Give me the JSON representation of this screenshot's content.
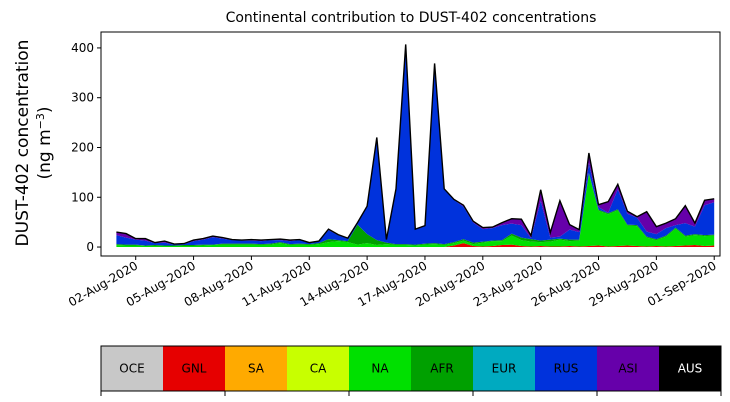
{
  "chart_data": {
    "type": "area",
    "stacked": true,
    "title": "Continental contribution to DUST-402 concentrations",
    "ylabel_line1": "DUST-402 concentration",
    "ylabel_line2_prefix": "(ng m",
    "ylabel_line2_sup": "−3",
    "ylabel_line2_suffix": ")",
    "xlabel": "",
    "ylim": [
      -18,
      432
    ],
    "yticks": [
      0,
      100,
      200,
      300,
      400
    ],
    "xlim": [
      -0.8,
      31.3
    ],
    "xticks": [
      {
        "x": 1,
        "label": "02-Aug-2020"
      },
      {
        "x": 4,
        "label": "05-Aug-2020"
      },
      {
        "x": 7,
        "label": "08-Aug-2020"
      },
      {
        "x": 10,
        "label": "11-Aug-2020"
      },
      {
        "x": 13,
        "label": "14-Aug-2020"
      },
      {
        "x": 16,
        "label": "17-Aug-2020"
      },
      {
        "x": 19,
        "label": "20-Aug-2020"
      },
      {
        "x": 22,
        "label": "23-Aug-2020"
      },
      {
        "x": 25,
        "label": "26-Aug-2020"
      },
      {
        "x": 28,
        "label": "29-Aug-2020"
      },
      {
        "x": 31,
        "label": "01-Sep-2020"
      }
    ],
    "x": [
      0,
      0.5,
      1,
      1.5,
      2,
      2.5,
      3,
      3.5,
      4,
      4.5,
      5,
      5.5,
      6,
      6.5,
      7,
      7.5,
      8,
      8.5,
      9,
      9.5,
      10,
      10.5,
      11,
      11.5,
      12,
      12.5,
      13,
      13.5,
      14,
      14.5,
      15,
      15.5,
      16,
      16.5,
      17,
      17.5,
      18,
      18.5,
      19,
      19.5,
      20,
      20.5,
      21,
      21.5,
      22,
      22.5,
      23,
      23.5,
      24,
      24.5,
      25,
      25.5,
      26,
      26.5,
      27,
      27.5,
      28,
      28.5,
      29,
      29.5,
      30,
      30.5,
      31
    ],
    "series": [
      {
        "name": "OCE",
        "color": "#c8c8c8",
        "values": [
          0,
          0,
          0,
          0,
          0,
          0,
          0,
          0,
          0,
          0,
          0,
          0,
          0,
          0,
          0,
          0,
          0,
          0,
          0,
          0,
          0,
          0,
          0,
          0,
          0,
          0,
          0,
          0,
          0,
          0,
          0,
          0,
          0,
          0,
          0,
          0,
          0,
          0,
          0,
          0,
          0,
          0,
          0,
          0,
          0,
          0,
          0,
          0,
          0,
          0,
          0,
          0,
          0,
          0,
          0,
          0,
          0,
          0,
          0,
          0,
          0,
          0,
          0
        ]
      },
      {
        "name": "GNL",
        "color": "#e60000",
        "values": [
          0,
          0,
          0,
          0,
          0,
          0,
          0,
          0,
          0,
          0,
          0,
          0,
          0,
          0,
          0,
          0,
          0,
          0,
          0,
          0,
          0,
          0,
          0,
          0,
          0,
          0,
          0,
          0,
          0,
          0,
          0,
          0,
          0,
          0,
          0,
          3,
          8,
          2,
          1,
          2,
          4,
          5,
          2,
          1,
          2,
          1,
          1,
          2,
          1,
          2,
          3,
          1,
          2,
          3,
          2,
          1,
          2,
          1,
          2,
          3,
          4,
          2,
          3
        ]
      },
      {
        "name": "SA",
        "color": "#ffaa00",
        "values": [
          0,
          0,
          0,
          0,
          0,
          0,
          0,
          0,
          0,
          0,
          0,
          0,
          0,
          0,
          0,
          0,
          0,
          0,
          0,
          0,
          0,
          0,
          0,
          0,
          0,
          0,
          0,
          0,
          0,
          0,
          0,
          0,
          0,
          0,
          0,
          0,
          0,
          0,
          0,
          0,
          0,
          0,
          0,
          0,
          0,
          0,
          0,
          0,
          0,
          0,
          0,
          0,
          0,
          0,
          0,
          0,
          0,
          0,
          0,
          0,
          0,
          0,
          0
        ]
      },
      {
        "name": "CA",
        "color": "#c8ff00",
        "values": [
          0,
          0,
          0,
          0,
          0,
          0,
          0,
          0,
          0,
          0,
          0,
          0,
          0,
          0,
          0,
          0,
          0,
          0,
          0,
          0,
          0,
          0,
          0,
          0,
          0,
          0,
          0,
          0,
          0,
          0,
          0,
          0,
          0,
          0,
          0,
          0,
          0,
          0,
          0,
          0,
          0,
          0,
          0,
          0,
          0,
          0,
          0,
          0,
          0,
          0,
          0,
          0,
          0,
          0,
          0,
          0,
          0,
          0,
          0,
          0,
          0,
          0,
          0
        ]
      },
      {
        "name": "NA",
        "color": "#00e000",
        "values": [
          4,
          3,
          3,
          2,
          2,
          2,
          2,
          2,
          2,
          3,
          4,
          5,
          5,
          5,
          5,
          4,
          5,
          8,
          4,
          5,
          4,
          6,
          10,
          12,
          10,
          5,
          8,
          4,
          6,
          4,
          4,
          3,
          5,
          6,
          4,
          5,
          5,
          4,
          8,
          10,
          8,
          18,
          12,
          10,
          8,
          10,
          14,
          10,
          12,
          145,
          70,
          65,
          72,
          40,
          40,
          18,
          12,
          20,
          35,
          18,
          20,
          20,
          20
        ]
      },
      {
        "name": "AFR",
        "color": "#00a000",
        "values": [
          2,
          2,
          2,
          1,
          2,
          1,
          1,
          2,
          2,
          2,
          1,
          2,
          2,
          2,
          2,
          2,
          2,
          2,
          2,
          2,
          2,
          2,
          6,
          2,
          2,
          40,
          18,
          10,
          3,
          2,
          2,
          2,
          2,
          2,
          2,
          2,
          3,
          3,
          2,
          1,
          2,
          4,
          5,
          5,
          3,
          4,
          2,
          3,
          2,
          2,
          2,
          2,
          2,
          2,
          2,
          2,
          2,
          2,
          2,
          2,
          2,
          2,
          2
        ]
      },
      {
        "name": "EUR",
        "color": "#00aac0",
        "values": [
          0,
          0,
          0,
          0,
          0,
          0,
          0,
          0,
          0,
          0,
          0,
          0,
          0,
          0,
          0,
          0,
          0,
          0,
          0,
          0,
          0,
          0,
          0,
          0,
          0,
          0,
          0,
          0,
          0,
          0,
          0,
          0,
          0,
          0,
          0,
          0,
          0,
          0,
          0,
          0,
          0,
          0,
          0,
          0,
          0,
          0,
          0,
          0,
          0,
          0,
          0,
          0,
          0,
          0,
          0,
          0,
          0,
          0,
          0,
          0,
          0,
          0,
          0
        ]
      },
      {
        "name": "RUS",
        "color": "#0032dc",
        "values": [
          18,
          14,
          10,
          10,
          4,
          6,
          2,
          2,
          8,
          10,
          15,
          10,
          7,
          6,
          6,
          6,
          7,
          4,
          6,
          7,
          2,
          3,
          18,
          10,
          5,
          3,
          55,
          205,
          5,
          110,
          400,
          30,
          35,
          360,
          110,
          85,
          65,
          40,
          25,
          25,
          30,
          20,
          25,
          2,
          80,
          4,
          4,
          20,
          15,
          20,
          5,
          1,
          40,
          22,
          15,
          10,
          10,
          15,
          5,
          25,
          15,
          60,
          65
        ]
      },
      {
        "name": "ASI",
        "color": "#6600aa",
        "values": [
          6,
          8,
          2,
          4,
          1,
          3,
          1,
          1,
          2,
          2,
          2,
          2,
          1,
          1,
          2,
          2,
          1,
          2,
          2,
          1,
          1,
          1,
          2,
          1,
          1,
          1,
          1,
          1,
          1,
          1,
          1,
          1,
          1,
          1,
          1,
          1,
          3,
          3,
          3,
          2,
          5,
          10,
          12,
          5,
          22,
          10,
          72,
          10,
          5,
          20,
          5,
          22,
          10,
          5,
          2,
          40,
          15,
          10,
          13,
          35,
          7,
          10,
          7
        ]
      },
      {
        "name": "AUS",
        "color": "#000000",
        "values": [
          0,
          0,
          0,
          0,
          0,
          0,
          0,
          0,
          0,
          0,
          0,
          0,
          0,
          0,
          0,
          0,
          0,
          0,
          0,
          0,
          0,
          0,
          0,
          0,
          0,
          0,
          0,
          0,
          0,
          0,
          0,
          0,
          0,
          0,
          0,
          0,
          0,
          0,
          0,
          0,
          0,
          0,
          0,
          0,
          0,
          0,
          0,
          0,
          0,
          0,
          0,
          0,
          0,
          0,
          0,
          0,
          0,
          0,
          0,
          0,
          0,
          0,
          0
        ]
      }
    ],
    "legend": {
      "placement": "bottom",
      "entries": [
        {
          "label": "OCE",
          "color": "#c8c8c8",
          "text_color": "#000000"
        },
        {
          "label": "GNL",
          "color": "#e60000",
          "text_color": "#000000"
        },
        {
          "label": "SA",
          "color": "#ffaa00",
          "text_color": "#000000"
        },
        {
          "label": "CA",
          "color": "#c8ff00",
          "text_color": "#000000"
        },
        {
          "label": "NA",
          "color": "#00e000",
          "text_color": "#000000"
        },
        {
          "label": "AFR",
          "color": "#00a000",
          "text_color": "#000000"
        },
        {
          "label": "EUR",
          "color": "#00aac0",
          "text_color": "#000000"
        },
        {
          "label": "RUS",
          "color": "#0032dc",
          "text_color": "#000000"
        },
        {
          "label": "ASI",
          "color": "#6600aa",
          "text_color": "#000000"
        },
        {
          "label": "AUS",
          "color": "#000000",
          "text_color": "#ffffff"
        }
      ]
    },
    "grid": false
  }
}
